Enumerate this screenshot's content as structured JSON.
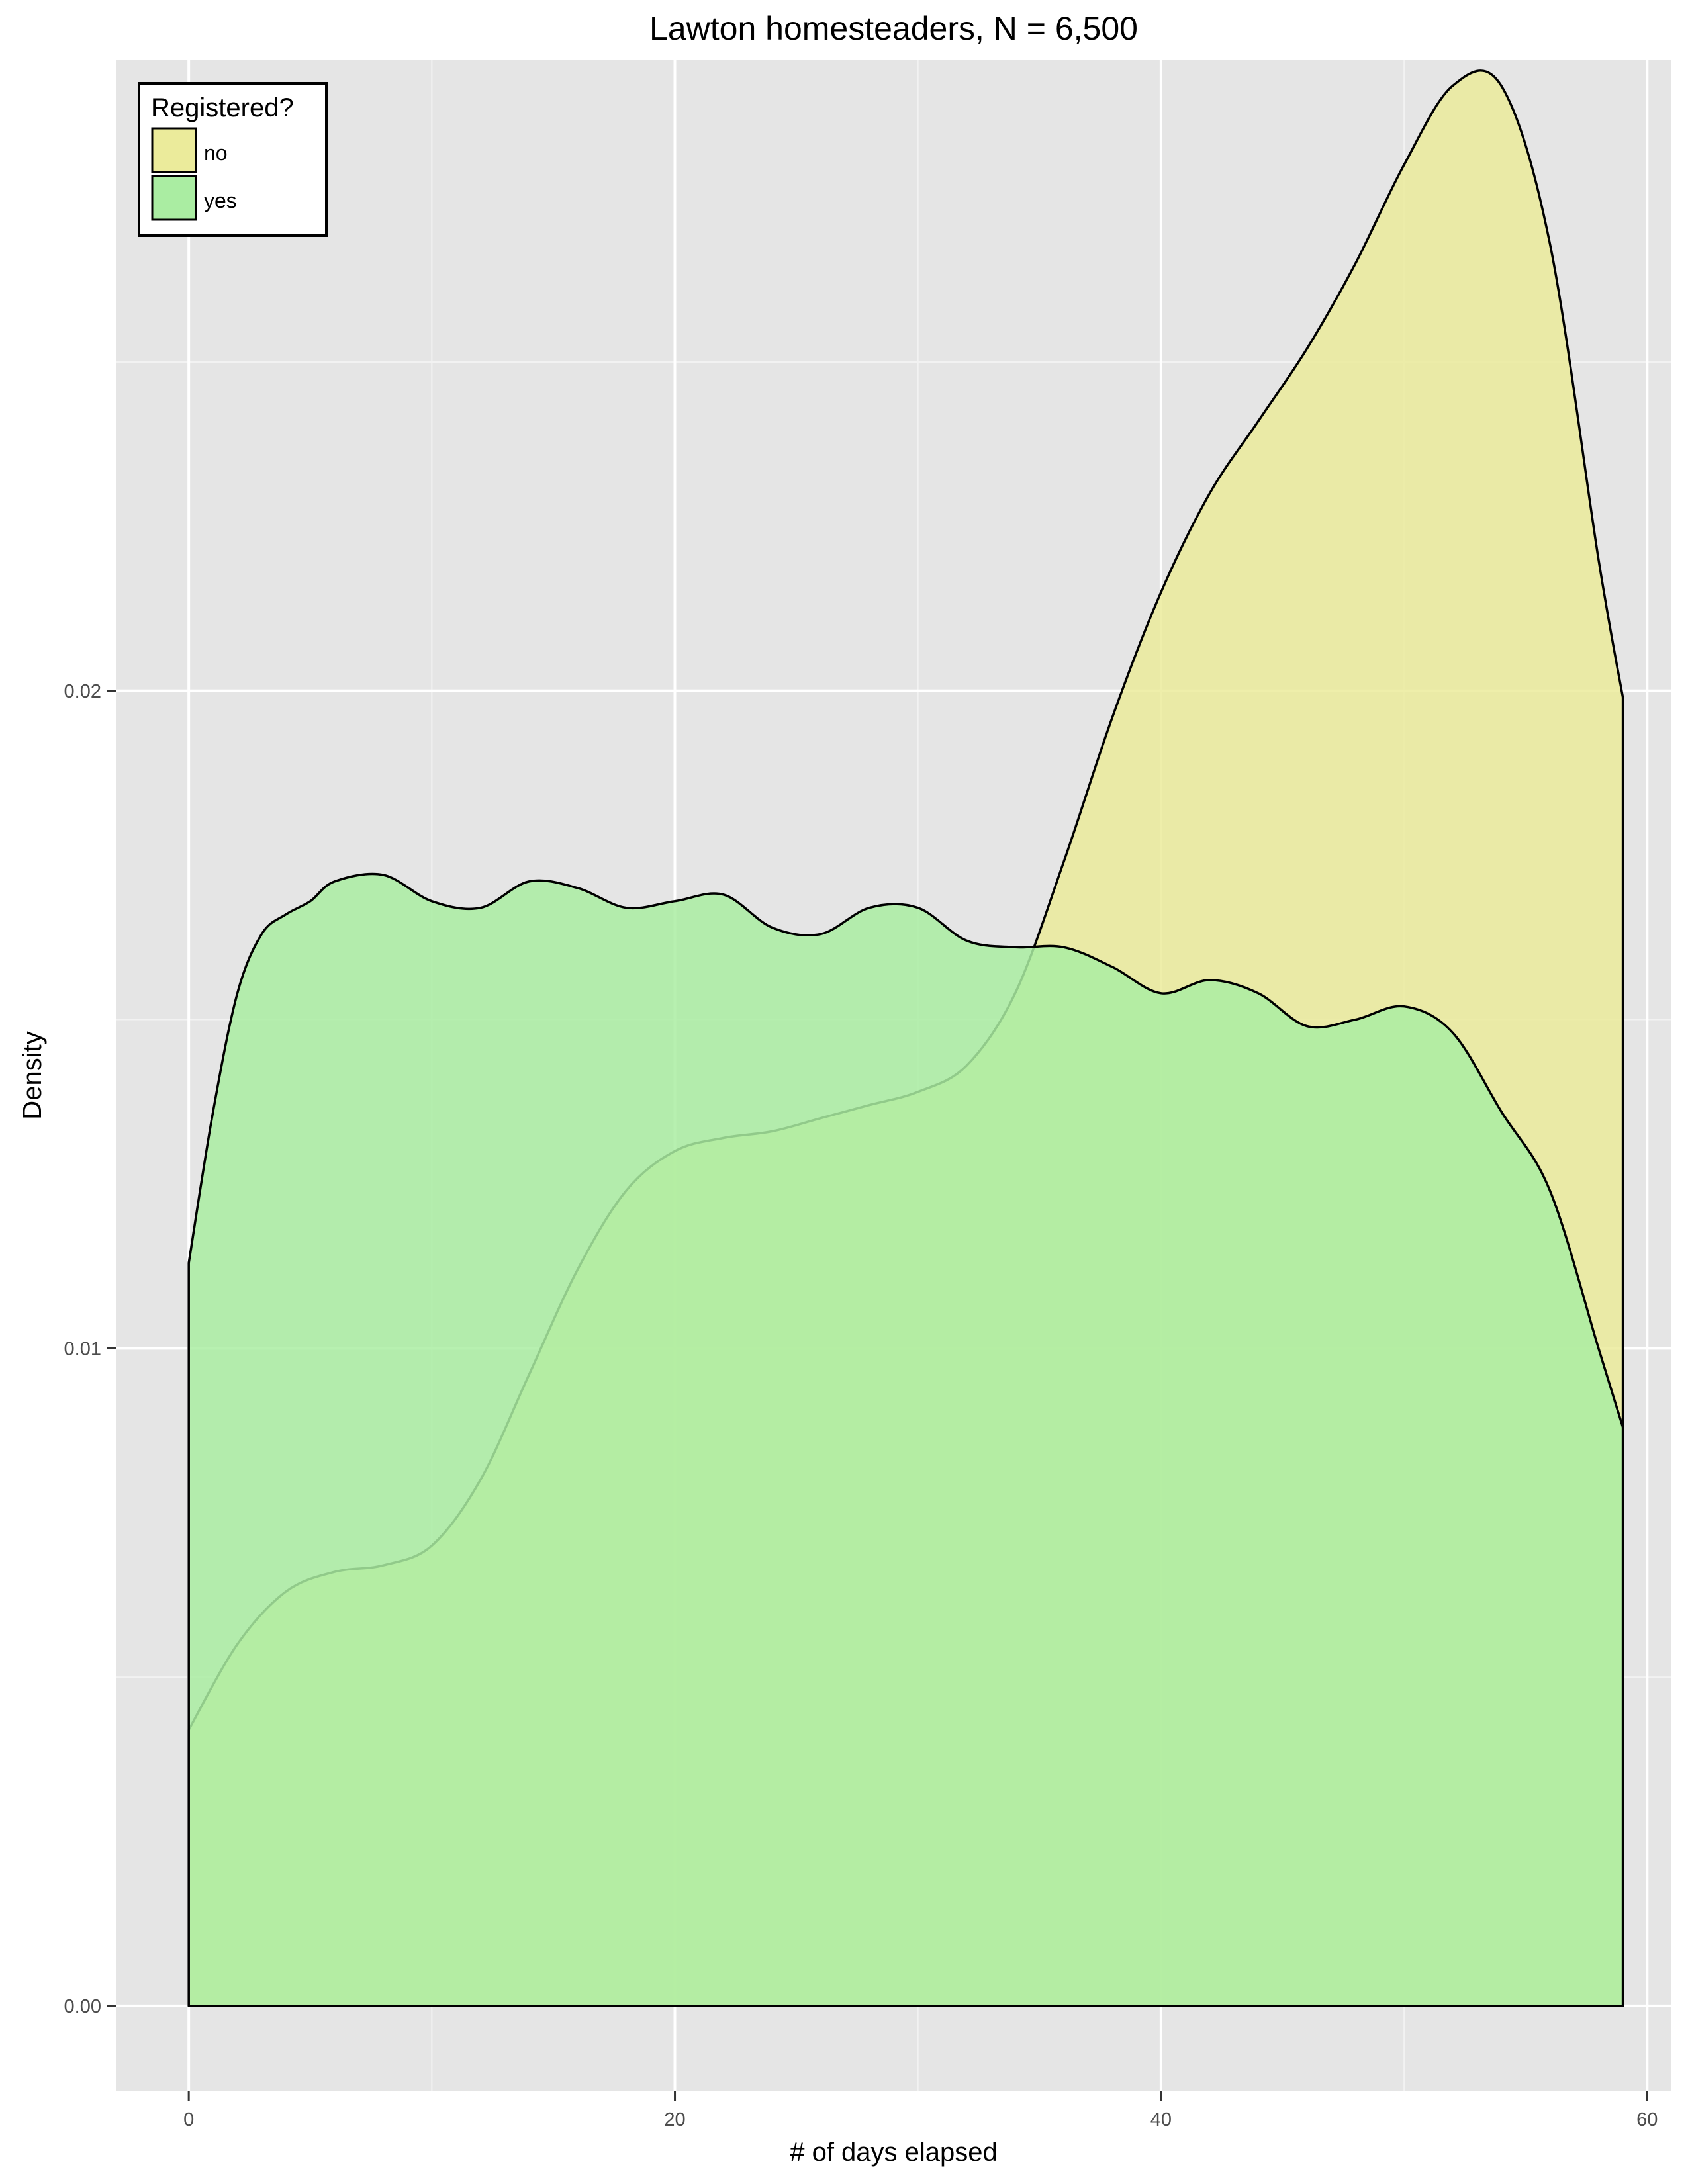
{
  "chart_data": {
    "type": "area",
    "title": "Lawton homesteaders, N = 6,500",
    "xlabel": "# of days elapsed",
    "ylabel": "Density",
    "xlim": [
      -3,
      61
    ],
    "ylim": [
      -0.0013,
      0.0296
    ],
    "x_ticks": [
      0,
      20,
      40,
      60
    ],
    "x_tick_labels": [
      "0",
      "20",
      "40",
      "60"
    ],
    "y_ticks": [
      0,
      0.01,
      0.02
    ],
    "y_tick_labels": [
      "0.00",
      "0.01",
      "0.02"
    ],
    "grid": true,
    "legend": {
      "title": "Registered?",
      "placement": "top-left"
    },
    "series": [
      {
        "name": "no",
        "color": "#EBEB9B",
        "x": [
          0,
          2,
          4,
          6,
          8,
          10,
          12,
          14,
          16,
          18,
          20,
          22,
          24,
          26,
          28,
          30,
          32,
          34,
          36,
          38,
          40,
          42,
          44,
          46,
          48,
          50,
          52,
          54,
          56,
          58,
          59
        ],
        "y": [
          0.0042,
          0.0055,
          0.0063,
          0.0066,
          0.0067,
          0.007,
          0.008,
          0.0096,
          0.0112,
          0.0124,
          0.013,
          0.0132,
          0.0133,
          0.0135,
          0.0137,
          0.0139,
          0.0143,
          0.0154,
          0.0174,
          0.0196,
          0.0215,
          0.023,
          0.0241,
          0.0252,
          0.0265,
          0.028,
          0.0292,
          0.0292,
          0.0268,
          0.022,
          0.0199
        ]
      },
      {
        "name": "yes",
        "color": "#AAEDA2",
        "x": [
          0,
          1,
          2,
          3,
          4,
          5,
          6,
          8,
          10,
          12,
          14,
          16,
          18,
          20,
          22,
          24,
          26,
          28,
          30,
          32,
          34,
          36,
          38,
          40,
          42,
          44,
          46,
          48,
          50,
          52,
          54,
          56,
          58,
          59
        ],
        "y": [
          0.0113,
          0.0136,
          0.0154,
          0.0163,
          0.0166,
          0.0168,
          0.0171,
          0.0172,
          0.0168,
          0.0167,
          0.0171,
          0.017,
          0.0167,
          0.0168,
          0.0169,
          0.0164,
          0.0163,
          0.0167,
          0.0167,
          0.0162,
          0.0161,
          0.0161,
          0.0158,
          0.0154,
          0.0156,
          0.0154,
          0.0149,
          0.015,
          0.0152,
          0.0148,
          0.0136,
          0.0124,
          0.01,
          0.0088
        ]
      }
    ]
  }
}
